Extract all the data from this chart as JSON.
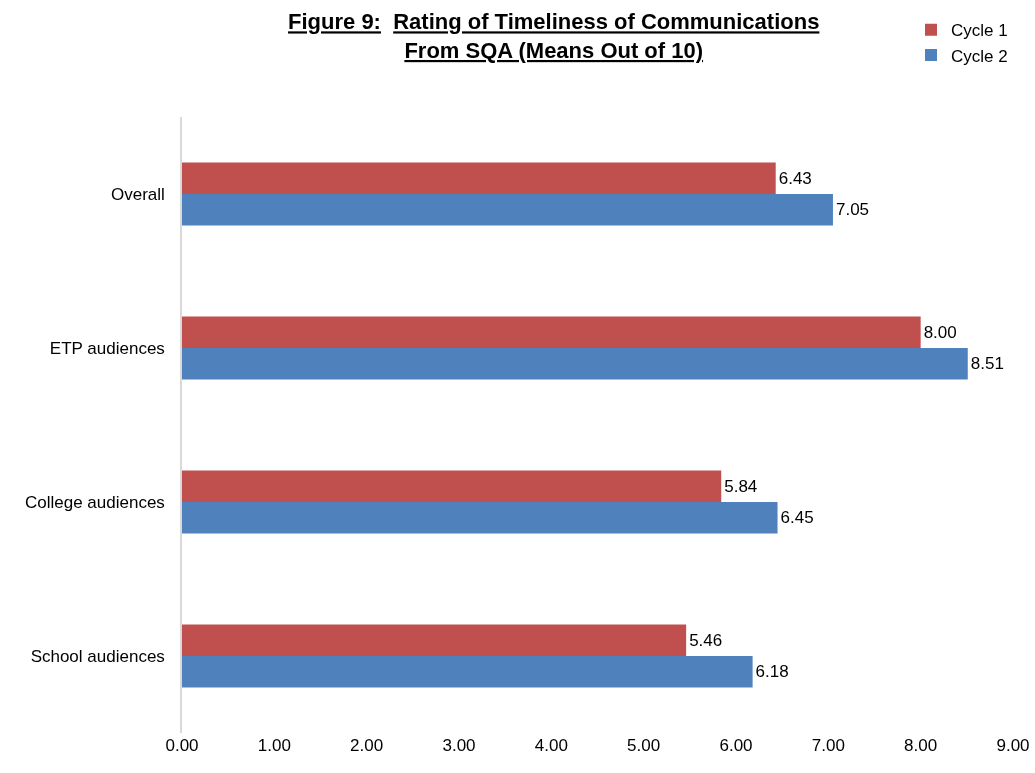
{
  "chart_data": {
    "type": "bar",
    "orientation": "horizontal",
    "title": "Figure 9:  Rating of Timeliness of Communications\nFrom SQA (Means Out of 10)",
    "categories": [
      "Overall",
      "ETP audiences",
      "College audiences",
      "School audiences"
    ],
    "series": [
      {
        "name": "Cycle 1",
        "color": "#c0504d",
        "values": [
          6.43,
          8.0,
          5.84,
          5.46
        ],
        "value_labels": [
          "6.43",
          "8.00",
          "5.84",
          "5.46"
        ]
      },
      {
        "name": "Cycle 2",
        "color": "#4f81bd",
        "values": [
          7.05,
          8.51,
          6.45,
          6.18
        ],
        "value_labels": [
          "7.05",
          "8.51",
          "6.45",
          "6.18"
        ]
      }
    ],
    "xlim": [
      0,
      9
    ],
    "xticks": [
      {
        "value": 0,
        "label": "0.00"
      },
      {
        "value": 1,
        "label": "1.00"
      },
      {
        "value": 2,
        "label": "2.00"
      },
      {
        "value": 3,
        "label": "3.00"
      },
      {
        "value": 4,
        "label": "4.00"
      },
      {
        "value": 5,
        "label": "5.00"
      },
      {
        "value": 6,
        "label": "6.00"
      },
      {
        "value": 7,
        "label": "7.00"
      },
      {
        "value": 8,
        "label": "8.00"
      },
      {
        "value": 9,
        "label": "9.00"
      }
    ],
    "grid": false,
    "legend": "top right"
  }
}
